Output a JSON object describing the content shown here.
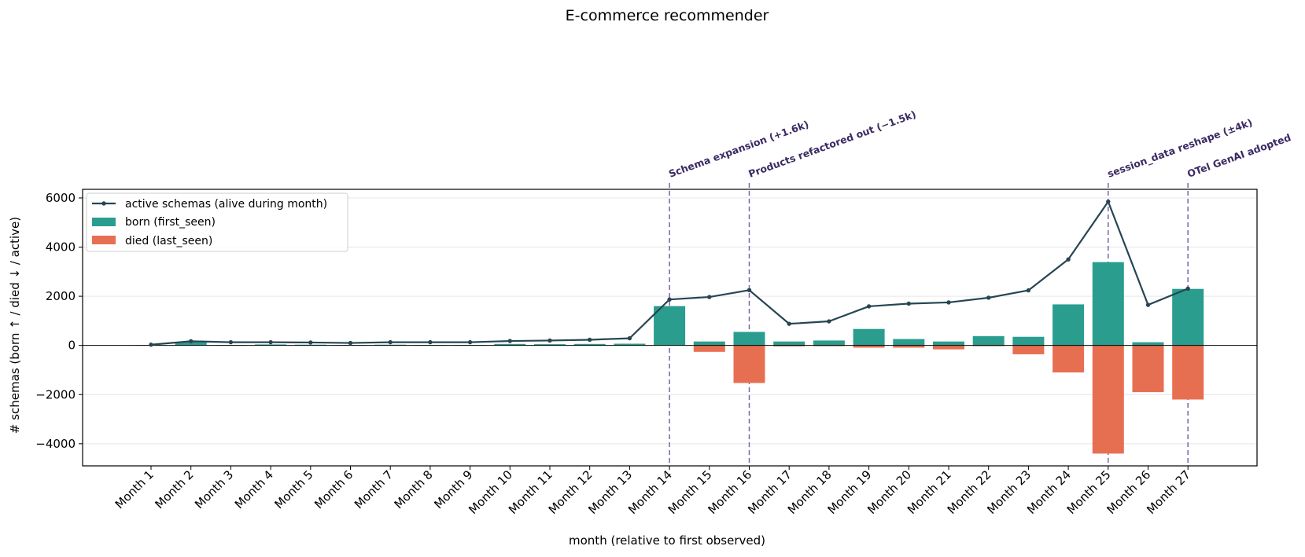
{
  "chart_data": {
    "type": "bar",
    "title": "E-commerce recommender",
    "xlabel": "month (relative to first observed)",
    "ylabel": "# schemas  (born ↑ / died ↓ / active)",
    "ylim": [
      -4900,
      6350
    ],
    "yticks": [
      -4000,
      -2000,
      0,
      2000,
      4000,
      6000
    ],
    "ytick_labels": [
      "−4000",
      "−2000",
      "0",
      "2000",
      "4000",
      "6000"
    ],
    "grid": "horizontal",
    "legend_position": "upper-left",
    "categories": [
      "Month 1",
      "Month 2",
      "Month 3",
      "Month 4",
      "Month 5",
      "Month 6",
      "Month 7",
      "Month 8",
      "Month 9",
      "Month 10",
      "Month 11",
      "Month 12",
      "Month 13",
      "Month 14",
      "Month 15",
      "Month 16",
      "Month 17",
      "Month 18",
      "Month 19",
      "Month 20",
      "Month 21",
      "Month 22",
      "Month 23",
      "Month 24",
      "Month 25",
      "Month 26",
      "Month 27"
    ],
    "series": [
      {
        "name": "active schemas (alive during month)",
        "kind": "line",
        "color": "#264653",
        "values": [
          30,
          170,
          130,
          130,
          120,
          100,
          130,
          130,
          130,
          180,
          200,
          230,
          290,
          1870,
          1970,
          2250,
          880,
          980,
          1590,
          1700,
          1750,
          1940,
          2240,
          3500,
          5850,
          1650,
          2310
        ]
      },
      {
        "name": "born (first_seen)",
        "kind": "bar",
        "color": "#2a9d8f",
        "values": [
          20,
          150,
          20,
          40,
          30,
          20,
          30,
          20,
          20,
          60,
          50,
          60,
          70,
          1600,
          160,
          550,
          160,
          200,
          670,
          260,
          160,
          380,
          350,
          1670,
          3390,
          130,
          2300
        ]
      },
      {
        "name": "died (last_seen)",
        "kind": "bar",
        "color": "#e76f51",
        "values": [
          0,
          -10,
          -10,
          -10,
          -10,
          -10,
          -10,
          -10,
          -10,
          -10,
          -10,
          -10,
          -10,
          -10,
          -260,
          -1530,
          -40,
          -30,
          -90,
          -90,
          -160,
          -30,
          -360,
          -1100,
          -4400,
          -1900,
          -2200
        ]
      }
    ],
    "events": [
      {
        "month": "Month 14",
        "label": "Schema expansion (+1.6k)"
      },
      {
        "month": "Month 16",
        "label": "Products refactored out (−1.5k)"
      },
      {
        "month": "Month 25",
        "label": "session_data reshape (±4k)"
      },
      {
        "month": "Month 27",
        "label": "OTel GenAI adopted"
      }
    ],
    "colors": {
      "event_line": "#7b63a8",
      "annotation_text": "#3b2a63",
      "grid": "#e6e6e6"
    }
  }
}
